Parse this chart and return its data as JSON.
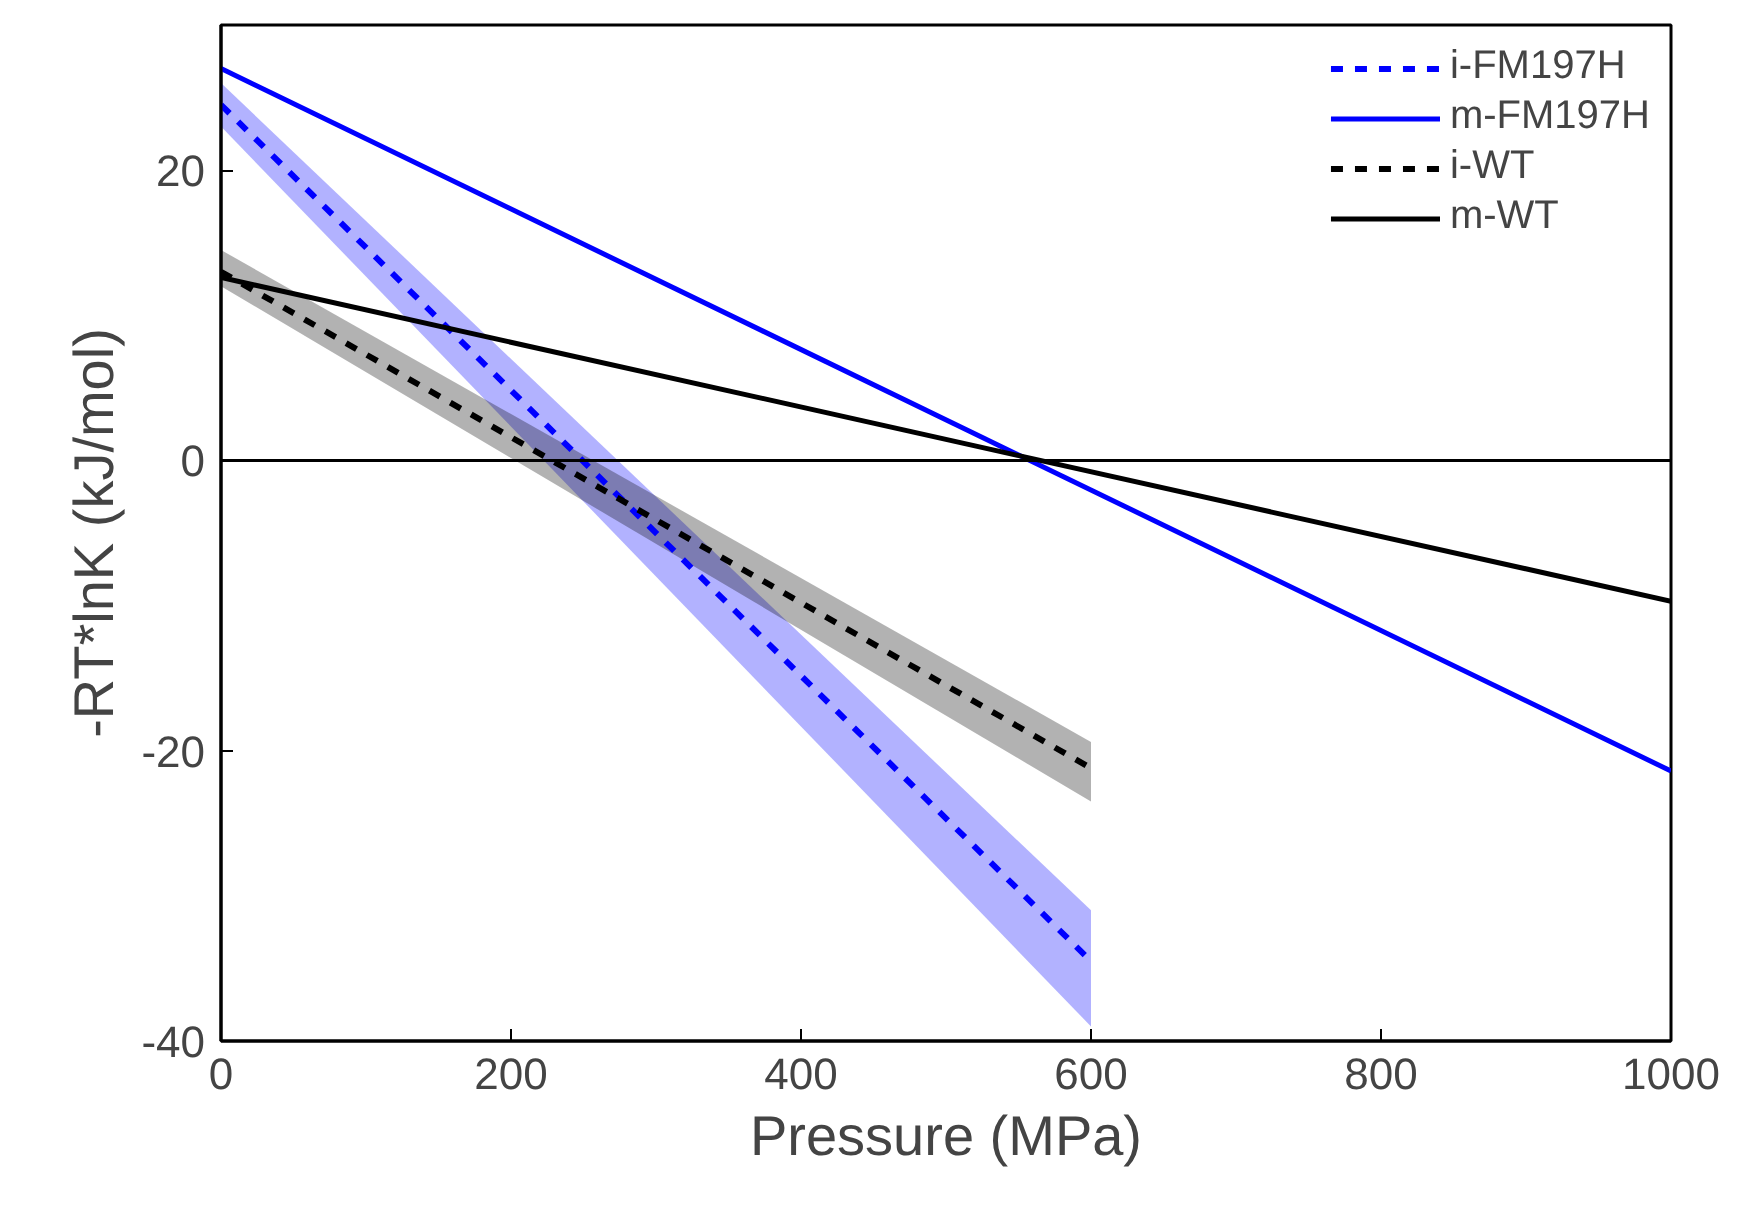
{
  "chart_data": {
    "type": "line",
    "xlabel": "Pressure (MPa)",
    "ylabel": "-RT*lnK (kJ/mol)",
    "xlim": [
      0,
      1000
    ],
    "ylim": [
      -40,
      30
    ],
    "xticks": [
      0,
      200,
      400,
      600,
      800,
      1000
    ],
    "yticks": [
      -40,
      -20,
      0,
      20
    ],
    "grid": false,
    "legend": "top right",
    "ref_lines": [
      {
        "axis": "y",
        "value": 0,
        "color": "#000000",
        "line_style": "solid"
      }
    ],
    "series": [
      {
        "name": "i-FM197H",
        "color": "#0000ff",
        "line_style": "dashed",
        "x": [
          0,
          600
        ],
        "values": [
          24.5,
          -34.5
        ],
        "lower": [
          23,
          -39
        ],
        "upper": [
          26,
          -31
        ]
      },
      {
        "name": "m-FM197H",
        "color": "#0000ff",
        "line_style": "solid",
        "x": [
          0,
          1000
        ],
        "values": [
          27,
          -21.4
        ]
      },
      {
        "name": "i-WT",
        "color": "#000000",
        "line_style": "dashed",
        "x": [
          0,
          600
        ],
        "values": [
          13,
          -21.2
        ],
        "lower": [
          12,
          -23.5
        ],
        "upper": [
          14.5,
          -19.4
        ]
      },
      {
        "name": "m-WT",
        "color": "#000000",
        "line_style": "solid",
        "x": [
          0,
          1000
        ],
        "values": [
          12.6,
          -9.7
        ]
      }
    ]
  }
}
